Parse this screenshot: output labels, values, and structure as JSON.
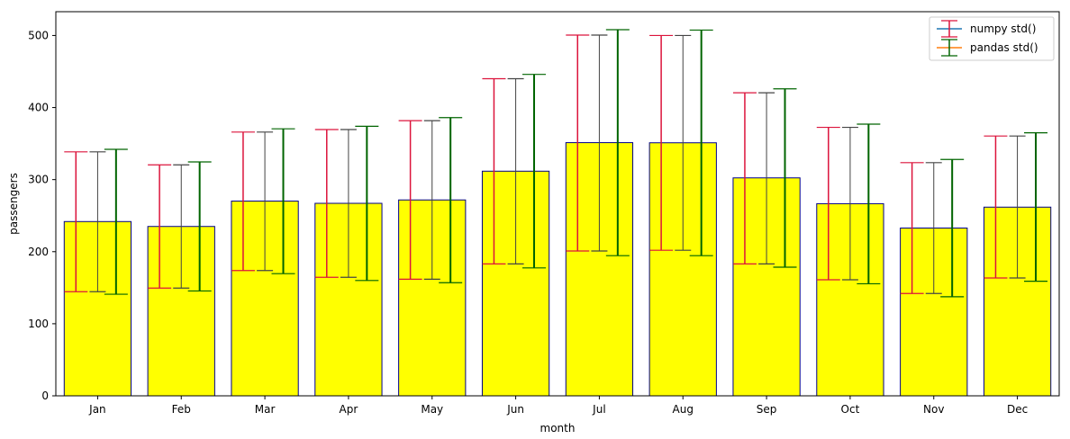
{
  "chart_data": {
    "type": "bar",
    "title": "",
    "xlabel": "month",
    "ylabel": "passengers",
    "ylim": [
      0,
      533
    ],
    "yticks": [
      0,
      100,
      200,
      300,
      400,
      500
    ],
    "categories": [
      "Jan",
      "Feb",
      "Mar",
      "Apr",
      "May",
      "Jun",
      "Jul",
      "Aug",
      "Sep",
      "Oct",
      "Nov",
      "Dec"
    ],
    "values": [
      241.8,
      235.0,
      270.2,
      267.1,
      271.8,
      311.7,
      351.3,
      351.1,
      302.4,
      266.6,
      232.8,
      261.8
    ],
    "error_series": [
      {
        "name": "numpy std()",
        "lower": [
          144.5,
          149.5,
          173.8,
          164.5,
          161.8,
          183.0,
          201.0,
          202.0,
          183.0,
          161.0,
          142.0,
          163.5
        ],
        "upper": [
          338.5,
          320.5,
          366.0,
          369.5,
          381.8,
          440.0,
          500.5,
          500.0,
          420.5,
          372.5,
          323.5,
          360.5
        ],
        "color": "#dc143c"
      },
      {
        "name": "",
        "lower": [
          144.5,
          149.5,
          173.8,
          164.5,
          161.8,
          183.0,
          201.0,
          202.0,
          183.0,
          161.0,
          142.0,
          163.5
        ],
        "upper": [
          338.5,
          320.5,
          366.0,
          369.5,
          381.8,
          440.0,
          500.5,
          500.0,
          420.5,
          372.5,
          323.5,
          360.5
        ],
        "color": "#444444"
      },
      {
        "name": "pandas std()",
        "lower": [
          141.0,
          145.5,
          169.5,
          160.0,
          157.0,
          177.5,
          194.5,
          194.5,
          178.5,
          155.5,
          137.5,
          159.0
        ],
        "upper": [
          342.0,
          324.5,
          370.5,
          374.0,
          386.0,
          446.0,
          508.0,
          507.5,
          426.0,
          377.0,
          328.0,
          365.0
        ],
        "color": "#006400"
      }
    ],
    "legend": [
      {
        "label": "numpy std()",
        "line_color": "#1f77b4",
        "cap_color": "#dc143c"
      },
      {
        "label": "pandas std()",
        "line_color": "#ff7f0e",
        "cap_color": "#006400"
      }
    ],
    "legend_position": "top-right",
    "bar_color": "#ffff00",
    "bar_edge_color": "#00008b",
    "grid": false
  }
}
